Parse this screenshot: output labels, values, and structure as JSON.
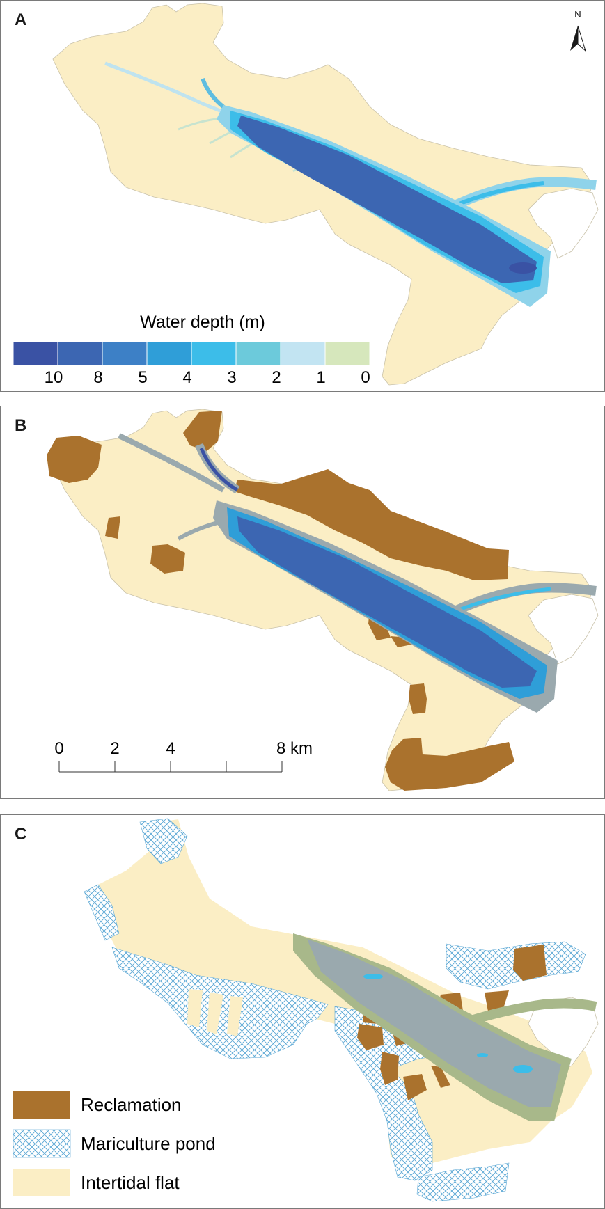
{
  "panels": {
    "a": {
      "label": "A"
    },
    "b": {
      "label": "B"
    },
    "c": {
      "label": "C"
    }
  },
  "north_arrow": {
    "label": "N"
  },
  "depth_legend": {
    "title": "Water depth (m)",
    "ticks": [
      "10",
      "8",
      "5",
      "4",
      "3",
      "2",
      "1",
      "0"
    ],
    "colors": [
      "#3a52a4",
      "#3c66b2",
      "#3d80c6",
      "#2f9ed8",
      "#3cbde9",
      "#6ccadb",
      "#c2e4f2",
      "#d6e7bc"
    ]
  },
  "scale_bar": {
    "ticks": [
      "0",
      "2",
      "4",
      "",
      "8 km"
    ],
    "values_km": [
      0,
      2,
      4,
      6,
      8
    ]
  },
  "class_legend": {
    "items": [
      {
        "label": "Reclamation",
        "color": "#aa722d"
      },
      {
        "label": "Mariculture pond",
        "color": "#5aa7d4"
      },
      {
        "label": "Intertidal flat",
        "color": "#fbeec5"
      }
    ]
  },
  "colors": {
    "intertidal_flat": "#fbeec5",
    "reclamation": "#aa722d",
    "channel_grey": "#9aa9ae",
    "channel_green": "#a8b88a",
    "mariculture_hatch": "#5aa7d4"
  }
}
